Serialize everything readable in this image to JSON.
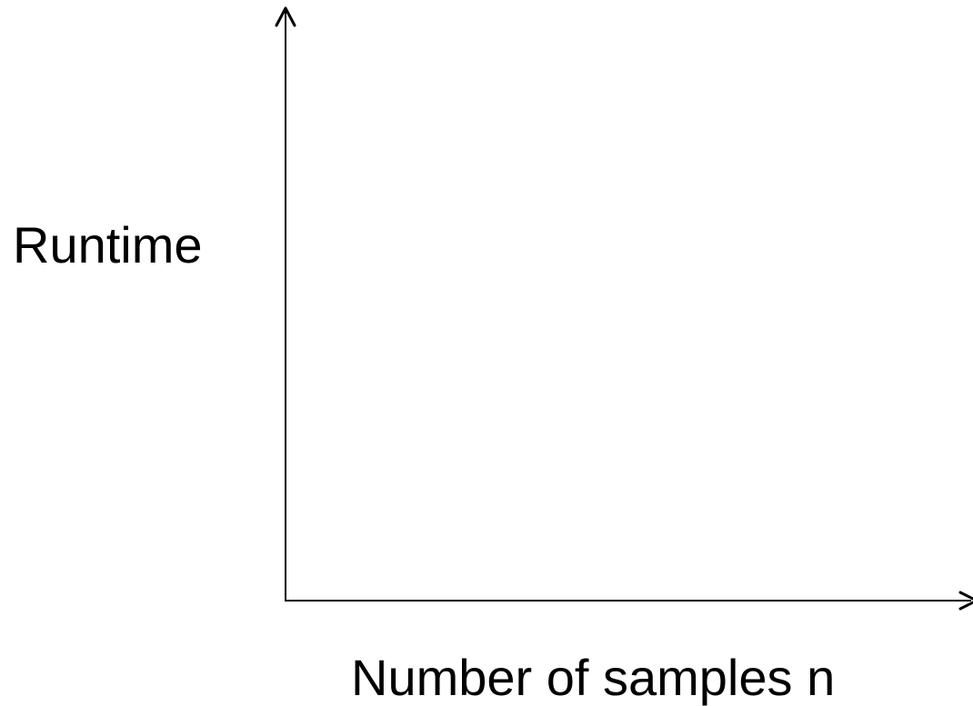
{
  "chart_data": {
    "type": "line",
    "title": "",
    "xlabel": "Number of samples n",
    "ylabel": "Runtime",
    "series": [],
    "x_ticks": [],
    "y_ticks": [],
    "grid": false,
    "legend": "none",
    "axis_arrows": true,
    "axis_color": "#000000"
  }
}
